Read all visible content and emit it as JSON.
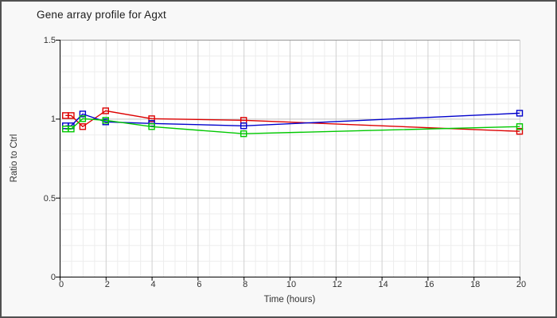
{
  "window": {
    "title": "Gene array profile for Agxt"
  },
  "palette": {
    "outer_bg": "#f8f8f8",
    "plot_bg": "#ffffff",
    "frame_border": "#515151",
    "grid_minor": "#ededed",
    "grid_major": "#cfcfcf",
    "grid_major_h": "#c3c3c3",
    "plot_top_border": "#999999",
    "axis": "#000000",
    "text": "#333333"
  },
  "chart_data": {
    "type": "line",
    "title": "Gene array profile for Agxt",
    "xlabel": "Time (hours)",
    "ylabel": "Ratio to Ctrl",
    "xlim": [
      0,
      20
    ],
    "ylim": [
      0,
      1.5
    ],
    "grid": true,
    "legend": "none",
    "marker": "open-square",
    "x_major_ticks": [
      0,
      2,
      4,
      6,
      8,
      10,
      12,
      14,
      16,
      18,
      20
    ],
    "x_tick_labels": [
      "0",
      "2",
      "4",
      "6",
      "8",
      "10",
      "12",
      "14",
      "16",
      "18",
      "20"
    ],
    "x_minor_step": 0.5,
    "y_major_ticks": [
      0,
      0.5,
      1,
      1.5
    ],
    "y_tick_labels": [
      "0",
      "0.5",
      "1",
      "1.5"
    ],
    "y_minor_step": 0.1,
    "x": [
      0.25,
      0.5,
      1,
      2,
      4,
      8,
      20
    ],
    "series": [
      {
        "name": "red",
        "color": "#dd0000",
        "values": [
          1.02,
          1.02,
          0.95,
          1.05,
          1.0,
          0.99,
          0.92
        ]
      },
      {
        "name": "blue",
        "color": "#0000cc",
        "values": [
          0.955,
          0.955,
          1.03,
          0.98,
          0.97,
          0.955,
          1.035
        ]
      },
      {
        "name": "green",
        "color": "#00c800",
        "values": [
          0.935,
          0.935,
          1.0,
          0.99,
          0.95,
          0.905,
          0.95
        ]
      }
    ]
  }
}
